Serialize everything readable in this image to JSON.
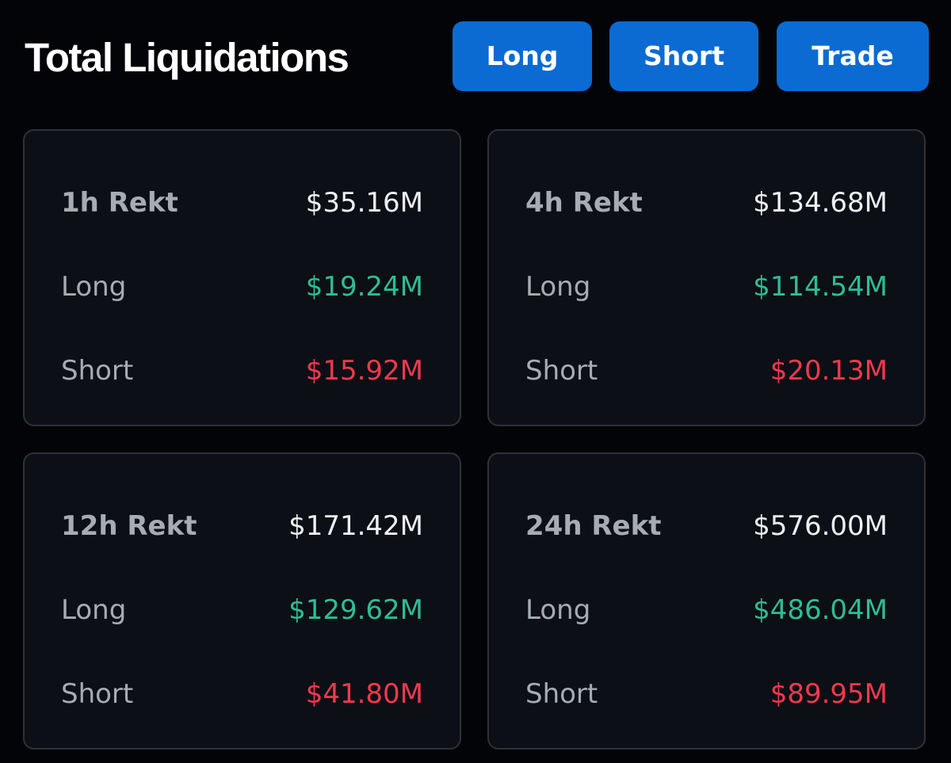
{
  "header": {
    "title": "Total Liquidations",
    "buttons": {
      "long": "Long",
      "short": "Short",
      "trade": "Trade"
    }
  },
  "colors": {
    "background": "#030408",
    "card_background": "#0c0f15",
    "button_blue": "#0b6bd3",
    "long_green": "#2ebd95",
    "short_red": "#f2394d"
  },
  "cards": [
    {
      "period": "1h Rekt",
      "total": "$35.16M",
      "long_label": "Long",
      "long": "$19.24M",
      "short_label": "Short",
      "short": "$15.92M"
    },
    {
      "period": "4h Rekt",
      "total": "$134.68M",
      "long_label": "Long",
      "long": "$114.54M",
      "short_label": "Short",
      "short": "$20.13M"
    },
    {
      "period": "12h Rekt",
      "total": "$171.42M",
      "long_label": "Long",
      "long": "$129.62M",
      "short_label": "Short",
      "short": "$41.80M"
    },
    {
      "period": "24h Rekt",
      "total": "$576.00M",
      "long_label": "Long",
      "long": "$486.04M",
      "short_label": "Short",
      "short": "$89.95M"
    }
  ]
}
